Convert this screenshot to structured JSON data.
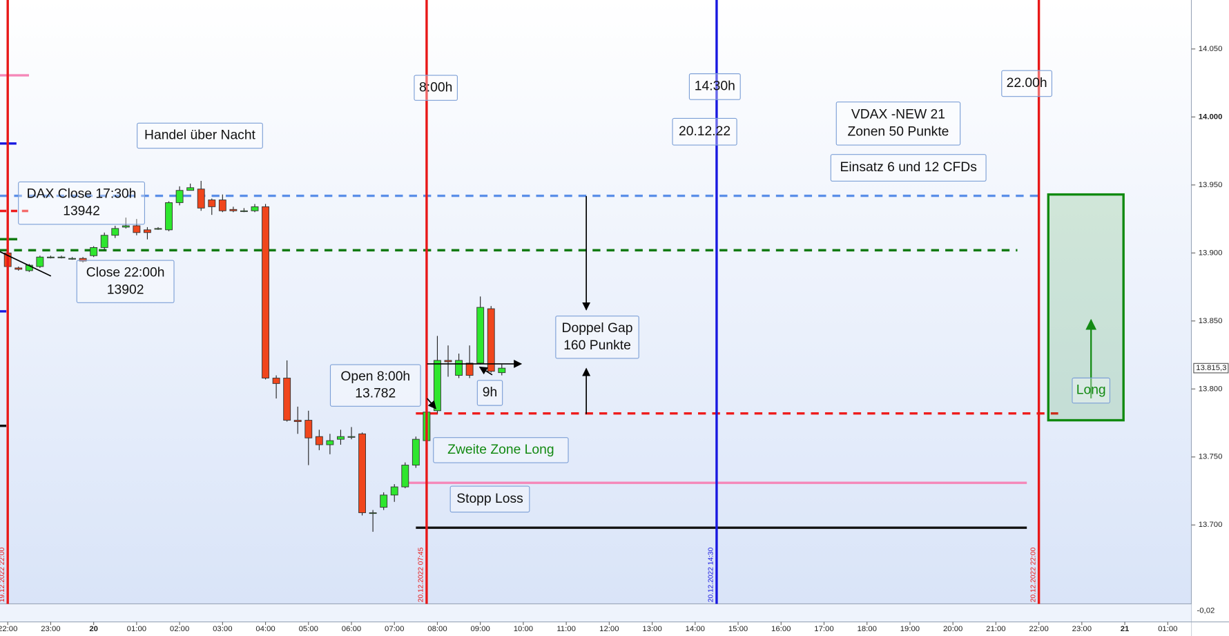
{
  "chart_data": {
    "type": "candlestick",
    "x": [
      0,
      0.25,
      0.5,
      0.75,
      1,
      1.25,
      1.5,
      1.75,
      2,
      2.25,
      2.5,
      2.75,
      3,
      3.25,
      3.5,
      3.75,
      4,
      4.25,
      4.5,
      4.75,
      5,
      5.25,
      5.5,
      5.75,
      6,
      6.25,
      6.5,
      6.75,
      7,
      7.25,
      7.5,
      7.75,
      8,
      8.25,
      8.5,
      8.75,
      9,
      9.25,
      9.5,
      9.75,
      10,
      10.25,
      10.5,
      10.75,
      11,
      11.25,
      11.5
    ],
    "open": [
      13900,
      13889,
      13887,
      13890,
      13897,
      13897,
      13896,
      13896,
      13898,
      13904,
      13913,
      13919,
      13920,
      13917,
      13918,
      13917,
      13937,
      13946,
      13947,
      13939,
      13939,
      13932,
      13931,
      13931,
      13934,
      13808,
      13808,
      13777,
      13777,
      13765,
      13759,
      13763,
      13765,
      13767,
      13709,
      13713,
      13722,
      13728,
      13744,
      13762,
      13784,
      13821,
      13810,
      13819,
      13819,
      13859,
      13812
    ],
    "high": [
      13902,
      13890,
      13892,
      13898,
      13898,
      13898,
      13897,
      13897,
      13905,
      13915,
      13920,
      13926,
      13925,
      13919,
      13919,
      13938,
      13949,
      13951,
      13953,
      13940,
      13943,
      13934,
      13933,
      13936,
      13936,
      13810,
      13821,
      13787,
      13784,
      13770,
      13767,
      13770,
      13772,
      13768,
      13711,
      13724,
      13730,
      13746,
      13765,
      13785,
      13839,
      13832,
      13826,
      13832,
      13868,
      13861,
      13818
    ],
    "low": [
      13889,
      13887,
      13886,
      13889,
      13896,
      13896,
      13895,
      13893,
      13897,
      13902,
      13911,
      13918,
      13913,
      13910,
      13917,
      13916,
      13935,
      13946,
      13931,
      13928,
      13930,
      13930,
      13930,
      13930,
      13807,
      13793,
      13776,
      13767,
      13744,
      13755,
      13752,
      13759,
      13763,
      13707,
      13695,
      13711,
      13717,
      13727,
      13742,
      13760,
      13782,
      13809,
      13808,
      13808,
      13818,
      13812,
      13810
    ],
    "close": [
      13890,
      13888,
      13891,
      13897,
      13897,
      13897,
      13896,
      13894,
      13904,
      13913,
      13918,
      13920,
      13915,
      13915,
      13918,
      13937,
      13946,
      13948,
      13933,
      13934,
      13931,
      13931,
      13931,
      13934,
      13808,
      13804,
      13777,
      13776,
      13764,
      13759,
      13762,
      13765,
      13765,
      13709,
      13709,
      13722,
      13728,
      13744,
      13763,
      13783,
      13821,
      13820,
      13821,
      13810,
      13860,
      13813,
      13815.3
    ],
    "up_color": "#2ee62e",
    "down_color": "#f0461c",
    "xlim": [
      -0.18,
      27.55
    ],
    "xticks": [
      {
        "value": 0,
        "label": "22:00"
      },
      {
        "value": 1,
        "label": "23:00"
      },
      {
        "value": 2,
        "label": "20"
      },
      {
        "value": 3,
        "label": "01:00"
      },
      {
        "value": 4,
        "label": "02:00"
      },
      {
        "value": 5,
        "label": "03:00"
      },
      {
        "value": 6,
        "label": "04:00"
      },
      {
        "value": 7,
        "label": "05:00"
      },
      {
        "value": 8,
        "label": "06:00"
      },
      {
        "value": 9,
        "label": "07:00"
      },
      {
        "value": 10,
        "label": "08:00"
      },
      {
        "value": 11,
        "label": "09:00"
      },
      {
        "value": 12,
        "label": "10:00"
      },
      {
        "value": 13,
        "label": "11:00"
      },
      {
        "value": 14,
        "label": "12:00"
      },
      {
        "value": 15,
        "label": "13:00"
      },
      {
        "value": 16,
        "label": "14:00"
      },
      {
        "value": 17,
        "label": "15:00"
      },
      {
        "value": 18,
        "label": "16:00"
      },
      {
        "value": 19,
        "label": "17:00"
      },
      {
        "value": 20,
        "label": "18:00"
      },
      {
        "value": 21,
        "label": "19:00"
      },
      {
        "value": 22,
        "label": "20:00"
      },
      {
        "value": 23,
        "label": "21:00"
      },
      {
        "value": 24,
        "label": "22:00"
      },
      {
        "value": 25,
        "label": "23:00"
      },
      {
        "value": 26,
        "label": "21"
      },
      {
        "value": 27,
        "label": "01:00"
      }
    ],
    "ylim": [
      13642,
      14086
    ],
    "yticks": [
      {
        "value": 13700,
        "label": "13.700"
      },
      {
        "value": 13750,
        "label": "13.750"
      },
      {
        "value": 13800,
        "label": "13.800"
      },
      {
        "value": 13850,
        "label": "13.850"
      },
      {
        "value": 13900,
        "label": "13.900"
      },
      {
        "value": 13950,
        "label": "13.950"
      },
      {
        "value": 14000,
        "label": "14.000"
      },
      {
        "value": 14050,
        "label": "14.050"
      }
    ],
    "last_price": {
      "value": 13815.3,
      "label": "13.815,3"
    },
    "indicator_tick": "-0,02",
    "vlines": [
      {
        "x": 0,
        "color": "#e81818",
        "label": "19.12.2022 22:00"
      },
      {
        "x": 9.75,
        "color": "#e81818",
        "label": "20.12.2022 07:45"
      },
      {
        "x": 16.5,
        "color": "#1818e0",
        "label": "20.12.2022 14:30"
      },
      {
        "x": 24,
        "color": "#e81818",
        "label": "20.12.2022 22:00"
      }
    ],
    "hlines": [
      {
        "value": 13942,
        "color": "#5b8fe8",
        "dashed": true,
        "x": [
          -0.18,
          24.1
        ]
      },
      {
        "value": 13902,
        "color": "#127a12",
        "dashed": true,
        "x": [
          -0.18,
          23.5
        ]
      },
      {
        "value": 13782,
        "color": "#ee1c1c",
        "dashed": true,
        "x": [
          9.5,
          24.45
        ]
      },
      {
        "value": 13731,
        "color": "#f587b8",
        "dashed": false,
        "x": [
          9.2,
          23.72
        ]
      },
      {
        "value": 13698,
        "color": "#111111",
        "dashed": false,
        "x": [
          9.5,
          23.72
        ]
      }
    ],
    "zone": {
      "x": [
        24.22,
        25.97
      ],
      "y": [
        13777,
        13943
      ],
      "color": "#108a10"
    },
    "annotations": [
      {
        "lines": [
          "8:00h"
        ],
        "color": "#111111"
      },
      {
        "lines": [
          "14:30h"
        ],
        "color": "#111111"
      },
      {
        "lines": [
          "22.00h"
        ],
        "color": "#111111"
      },
      {
        "lines": [
          "20.12.22"
        ],
        "color": "#111111"
      },
      {
        "lines": [
          "Handel über Nacht"
        ],
        "color": "#111111"
      },
      {
        "lines": [
          "VDAX -NEW 21",
          "Zonen 50  Punkte"
        ],
        "color": "#111111"
      },
      {
        "lines": [
          "Einsatz 6 und 12 CFDs"
        ],
        "color": "#111111"
      },
      {
        "lines": [
          "DAX Close 17:30h",
          "13942"
        ],
        "color": "#111111"
      },
      {
        "lines": [
          "Close 22:00h",
          "13902"
        ],
        "color": "#111111"
      },
      {
        "lines": [
          "Open 8:00h",
          "13.782"
        ],
        "color": "#111111"
      },
      {
        "lines": [
          "Doppel Gap",
          "160 Punkte"
        ],
        "color": "#111111"
      },
      {
        "lines": [
          "9h"
        ],
        "color": "#111111"
      },
      {
        "lines": [
          "Zweite Zone Long"
        ],
        "color": "#138a13"
      },
      {
        "lines": [
          "Stopp Loss"
        ],
        "color": "#111111"
      },
      {
        "lines": [
          "Long"
        ],
        "color": "#138a13"
      }
    ]
  }
}
